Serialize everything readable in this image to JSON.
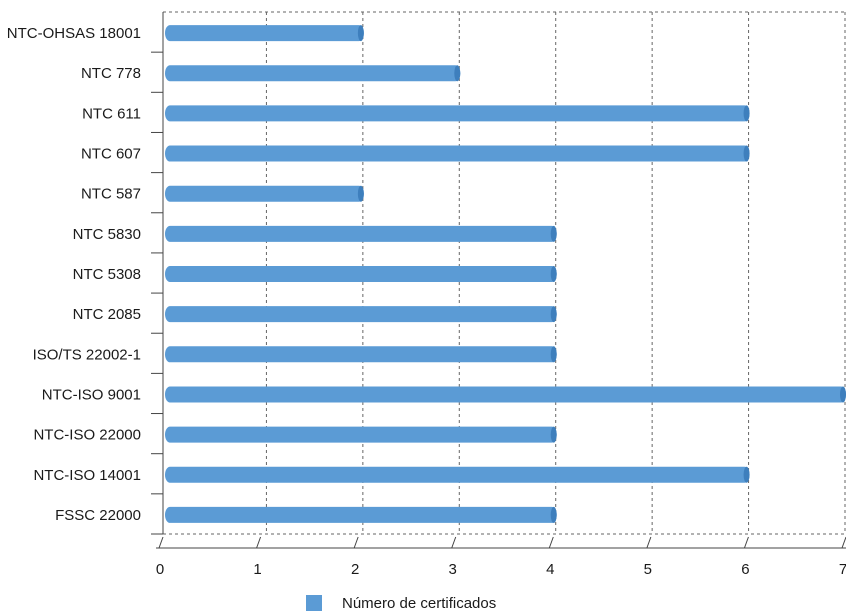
{
  "chart_data": {
    "type": "bar",
    "orientation": "horizontal",
    "categories": [
      "NTC-OHSAS 18001",
      "NTC 778",
      "NTC 611",
      "NTC 607",
      "NTC 587",
      "NTC 5830",
      "NTC 5308",
      "NTC 2085",
      "ISO/TS 22002-1",
      "NTC-ISO 9001",
      "NTC-ISO 22000",
      "NTC-ISO 14001",
      "FSSC 22000"
    ],
    "series": [
      {
        "name": "Número de certificados",
        "values": [
          2,
          3,
          6,
          6,
          2,
          4,
          4,
          4,
          4,
          7,
          4,
          6,
          4
        ]
      }
    ],
    "title": "",
    "xlabel": "",
    "ylabel": "",
    "xlim": [
      0,
      7
    ],
    "xticks": [
      "0",
      "1",
      "2",
      "3",
      "4",
      "5",
      "6",
      "7"
    ],
    "grid": "vertical dashed",
    "legend_position": "bottom-center",
    "colors": {
      "bar": "#5b9bd5",
      "bar_edge": "#3e7fbd",
      "grid": "#666666",
      "axis": "#444444"
    }
  }
}
